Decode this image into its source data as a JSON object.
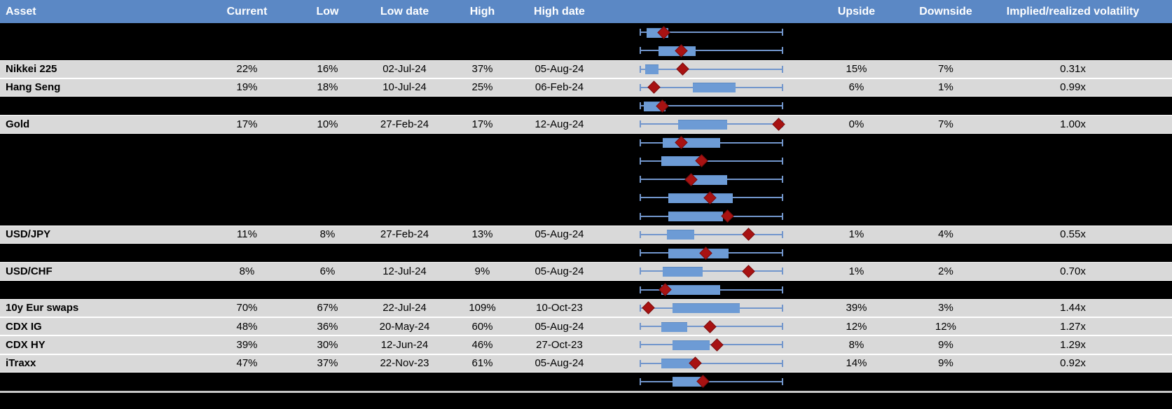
{
  "header": {
    "columns": [
      "Asset",
      "Current",
      "Low",
      "Low date",
      "High",
      "High date",
      "",
      "Upside",
      "Downside",
      "Implied/realized volatility"
    ]
  },
  "colors": {
    "header_bg": "#5b88c5",
    "row_gray": "#d9d9d9",
    "row_black": "#000000",
    "box_fill": "#6d9bd5",
    "whisker": "#7296cc",
    "diamond": "#a81212"
  },
  "rows": [
    {
      "type": "redacted",
      "plot": {
        "box_start": 0.05,
        "box_end": 0.2,
        "diamond": 0.17
      }
    },
    {
      "type": "redacted",
      "plot": {
        "box_start": 0.13,
        "box_end": 0.39,
        "diamond": 0.29
      }
    },
    {
      "type": "data",
      "asset": "Nikkei 225",
      "current": "22%",
      "low": "16%",
      "low_date": "02-Jul-24",
      "high": "37%",
      "high_date": "05-Aug-24",
      "upside": "15%",
      "downside": "7%",
      "ivol": "0.31x",
      "plot": {
        "box_start": 0.04,
        "box_end": 0.13,
        "diamond": 0.3
      }
    },
    {
      "type": "data",
      "asset": "Hang Seng",
      "current": "19%",
      "low": "18%",
      "low_date": "10-Jul-24",
      "high": "25%",
      "high_date": "06-Feb-24",
      "upside": "6%",
      "downside": "1%",
      "ivol": "0.99x",
      "plot": {
        "box_start": 0.37,
        "box_end": 0.67,
        "diamond": 0.1
      }
    },
    {
      "type": "redacted",
      "plot": {
        "box_start": 0.03,
        "box_end": 0.18,
        "diamond": 0.16
      }
    },
    {
      "type": "data",
      "asset": "Gold",
      "current": "17%",
      "low": "10%",
      "low_date": "27-Feb-24",
      "high": "17%",
      "high_date": "12-Aug-24",
      "upside": "0%",
      "downside": "7%",
      "ivol": "1.00x",
      "plot": {
        "box_start": 0.27,
        "box_end": 0.61,
        "diamond": 0.97
      }
    },
    {
      "type": "redacted",
      "plot": {
        "box_start": 0.16,
        "box_end": 0.56,
        "diamond": 0.29
      }
    },
    {
      "type": "redacted",
      "plot": {
        "box_start": 0.15,
        "box_end": 0.42,
        "diamond": 0.43
      }
    },
    {
      "type": "redacted",
      "plot": {
        "box_start": 0.36,
        "box_end": 0.61,
        "diamond": 0.36
      }
    },
    {
      "type": "redacted",
      "plot": {
        "box_start": 0.2,
        "box_end": 0.65,
        "diamond": 0.49
      }
    },
    {
      "type": "redacted",
      "plot": {
        "box_start": 0.2,
        "box_end": 0.58,
        "diamond": 0.61
      }
    },
    {
      "type": "data",
      "asset": "USD/JPY",
      "current": "11%",
      "low": "8%",
      "low_date": "27-Feb-24",
      "high": "13%",
      "high_date": "05-Aug-24",
      "upside": "1%",
      "downside": "4%",
      "ivol": "0.55x",
      "plot": {
        "box_start": 0.19,
        "box_end": 0.38,
        "diamond": 0.76
      }
    },
    {
      "type": "redacted",
      "plot": {
        "box_start": 0.2,
        "box_end": 0.62,
        "diamond": 0.46
      }
    },
    {
      "type": "data",
      "asset": "USD/CHF",
      "current": "8%",
      "low": "6%",
      "low_date": "12-Jul-24",
      "high": "9%",
      "high_date": "05-Aug-24",
      "upside": "1%",
      "downside": "2%",
      "ivol": "0.70x",
      "plot": {
        "box_start": 0.16,
        "box_end": 0.44,
        "diamond": 0.76
      }
    },
    {
      "type": "redacted",
      "plot": {
        "box_start": 0.15,
        "box_end": 0.56,
        "diamond": 0.18
      }
    },
    {
      "type": "data",
      "asset": "10y Eur swaps",
      "current": "70%",
      "low": "67%",
      "low_date": "22-Jul-24",
      "high": "109%",
      "high_date": "10-Oct-23",
      "upside": "39%",
      "downside": "3%",
      "ivol": "1.44x",
      "plot": {
        "box_start": 0.23,
        "box_end": 0.7,
        "diamond": 0.06
      }
    },
    {
      "type": "data",
      "asset": "CDX IG",
      "current": "48%",
      "low": "36%",
      "low_date": "20-May-24",
      "high": "60%",
      "high_date": "05-Aug-24",
      "upside": "12%",
      "downside": "12%",
      "ivol": "1.27x",
      "plot": {
        "box_start": 0.15,
        "box_end": 0.33,
        "diamond": 0.49
      }
    },
    {
      "type": "data",
      "asset": "CDX HY",
      "current": "39%",
      "low": "30%",
      "low_date": "12-Jun-24",
      "high": "46%",
      "high_date": "27-Oct-23",
      "upside": "8%",
      "downside": "9%",
      "ivol": "1.29x",
      "plot": {
        "box_start": 0.23,
        "box_end": 0.49,
        "diamond": 0.54
      }
    },
    {
      "type": "data",
      "asset": "iTraxx",
      "current": "47%",
      "low": "37%",
      "low_date": "22-Nov-23",
      "high": "61%",
      "high_date": "05-Aug-24",
      "upside": "14%",
      "downside": "9%",
      "ivol": "0.92x",
      "plot": {
        "box_start": 0.15,
        "box_end": 0.39,
        "diamond": 0.39
      }
    },
    {
      "type": "redacted",
      "plot": {
        "box_start": 0.23,
        "box_end": 0.44,
        "diamond": 0.44
      }
    }
  ]
}
